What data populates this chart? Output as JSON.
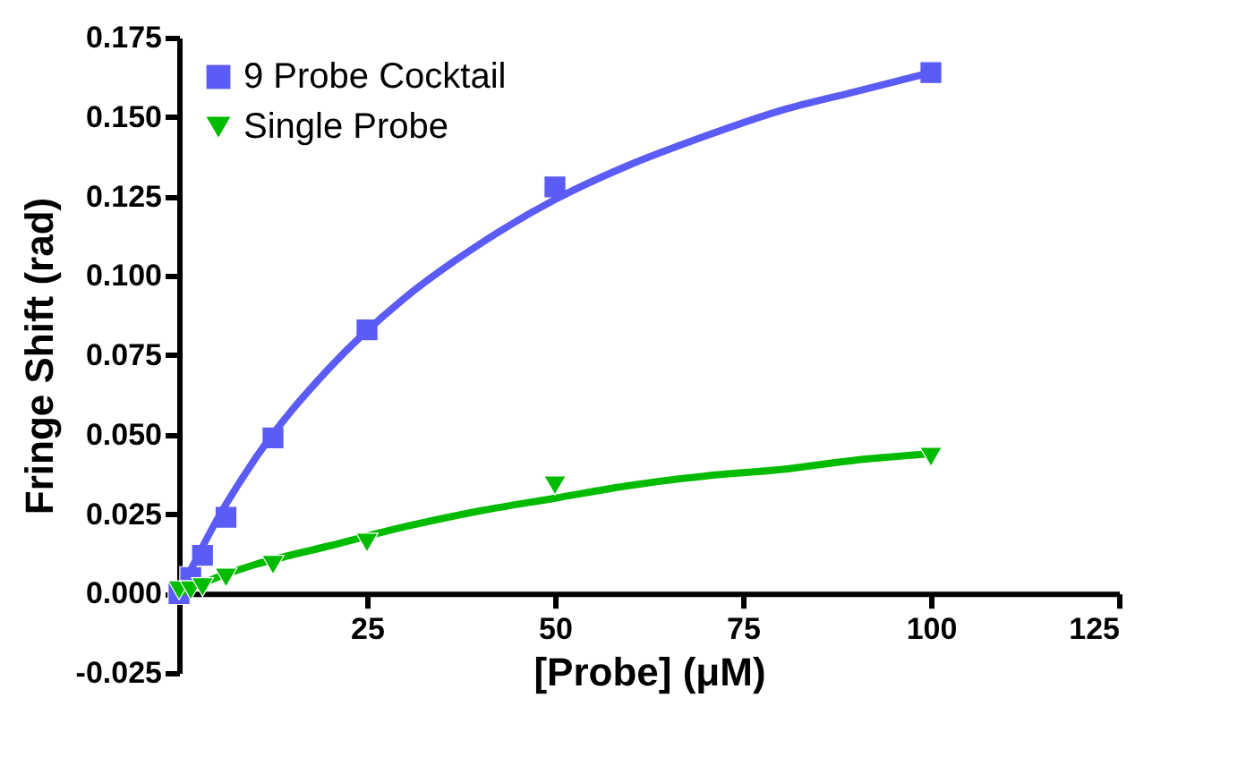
{
  "chart_data": {
    "type": "scatter",
    "xlabel": "[Probe] (μM)",
    "ylabel": "Fringe Shift (rad)",
    "xlim": [
      0,
      125
    ],
    "xticks": [
      25,
      50,
      75,
      100,
      125
    ],
    "ylim": [
      -0.025,
      0.175
    ],
    "yticks": [
      {
        "value": -0.025,
        "label": "-0.025"
      },
      {
        "value": 0,
        "label": "0.000"
      },
      {
        "value": 0.025,
        "label": "0.025"
      },
      {
        "value": 0.05,
        "label": "0.050"
      },
      {
        "value": 0.075,
        "label": "0.075"
      },
      {
        "value": 0.1,
        "label": "0.100"
      },
      {
        "value": 0.125,
        "label": "0.125"
      },
      {
        "value": 0.15,
        "label": "0.150"
      },
      {
        "value": 0.175,
        "label": "0.175"
      }
    ],
    "grid": false,
    "legend": "top left",
    "series": [
      {
        "name": "9 Probe Cocktail",
        "marker": "square",
        "color": "#5b5bf5",
        "x": [
          0,
          1.5625,
          3.125,
          6.25,
          12.5,
          25,
          50,
          100
        ],
        "values": [
          0,
          0.005,
          0.012,
          0.024,
          0.049,
          0.083,
          0.128,
          0.164
        ]
      },
      {
        "name": "Single Probe",
        "marker": "triangle-down",
        "color": "#00bb00",
        "x": [
          0,
          1.5625,
          3.125,
          6.25,
          12.5,
          25,
          50,
          100
        ],
        "values": [
          0.001,
          0.001,
          0.002,
          0.005,
          0.009,
          0.016,
          0.034,
          0.043
        ]
      },
      {
        "type": "line",
        "line_style": "solid",
        "color": "#5b5bf5",
        "x": [
          0,
          5,
          10,
          20,
          30,
          40,
          50,
          60,
          70,
          80,
          90,
          100
        ],
        "values": [
          0,
          0.023,
          0.042,
          0.071,
          0.093,
          0.11,
          0.124,
          0.135,
          0.144,
          0.152,
          0.158,
          0.164
        ]
      },
      {
        "type": "line",
        "line_style": "solid",
        "color": "#00bb00",
        "x": [
          0,
          5,
          10,
          20,
          30,
          40,
          50,
          60,
          70,
          80,
          90,
          100
        ],
        "values": [
          0,
          0.005,
          0.009,
          0.015,
          0.021,
          0.026,
          0.03,
          0.034,
          0.037,
          0.039,
          0.042,
          0.044
        ]
      }
    ]
  }
}
